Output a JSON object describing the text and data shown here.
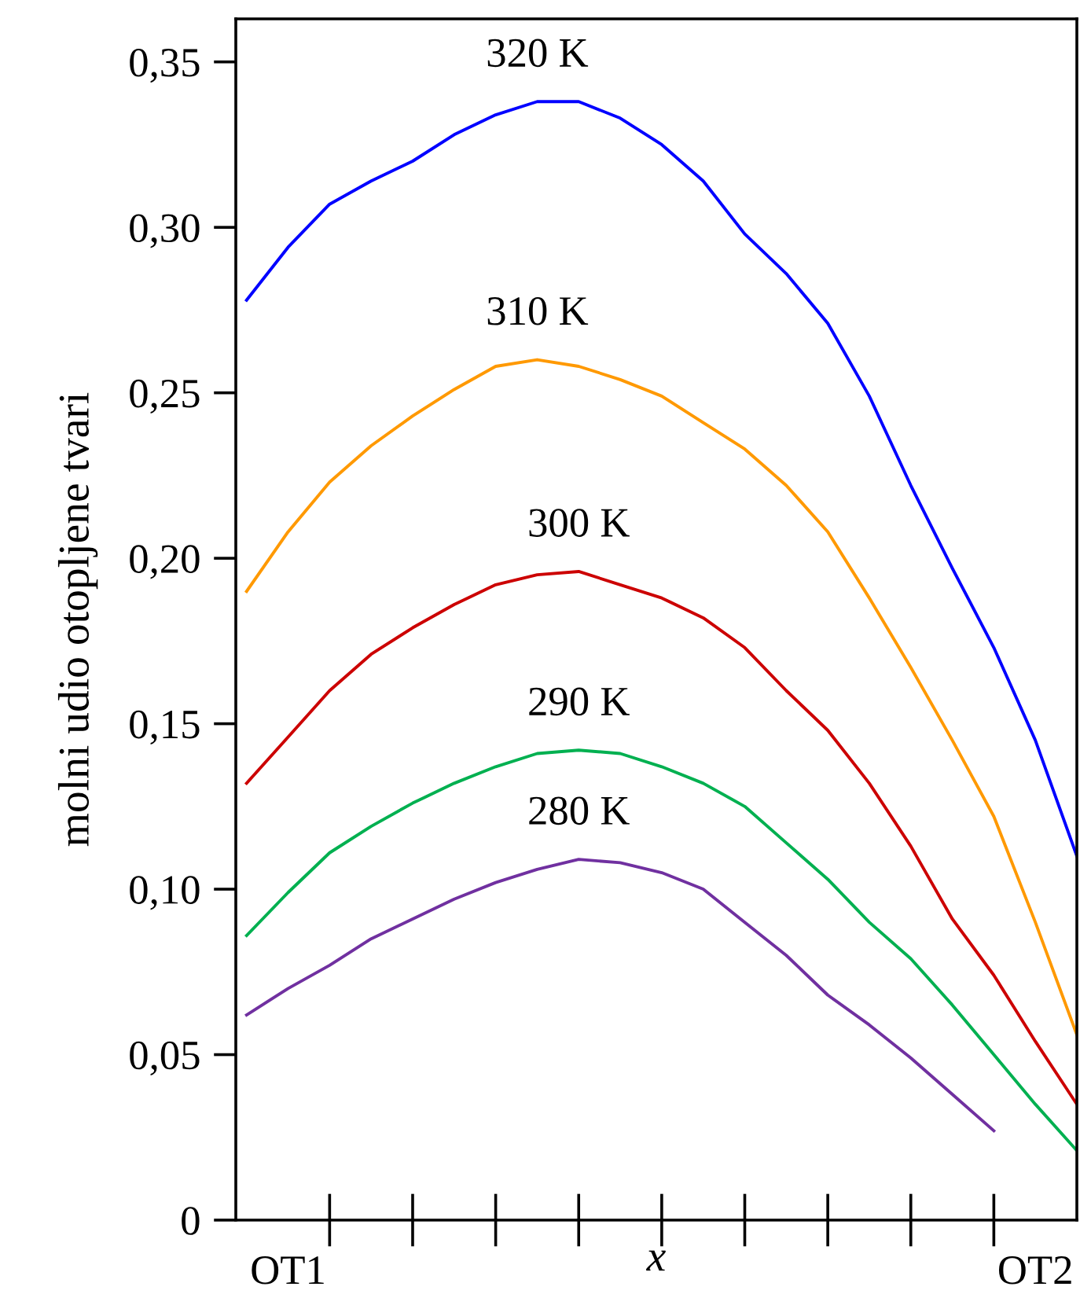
{
  "chart_data": {
    "type": "line",
    "xlabel": "x",
    "ylabel": "molni udio otopljene tvari",
    "categories": [
      null,
      "OT1",
      null,
      null,
      null,
      null,
      null,
      null,
      null,
      null,
      null,
      null,
      null,
      null,
      null,
      null,
      null,
      null,
      null,
      "OT2",
      null
    ],
    "ylim": [
      0,
      0.363
    ],
    "yticks": [
      0,
      {
        "value": 0.05,
        "label": "0,05"
      },
      {
        "value": 0.1,
        "label": "0,10"
      },
      {
        "value": 0.15,
        "label": "0,15"
      },
      {
        "value": 0.2,
        "label": "0,20"
      },
      {
        "value": 0.25,
        "label": "0,25"
      },
      {
        "value": 0.3,
        "label": "0,30"
      },
      {
        "value": 0.35,
        "label": "0,35"
      }
    ],
    "grid": false,
    "legend": false,
    "marker": "none",
    "line_style": "solid",
    "series": [
      {
        "name": "320 K",
        "color": "#0000ff",
        "values": [
          0.278,
          0.294,
          0.307,
          0.314,
          0.32,
          0.328,
          0.334,
          0.338,
          0.338,
          0.333,
          0.325,
          0.314,
          0.298,
          0.286,
          0.271,
          0.249,
          0.222,
          0.197,
          0.173,
          0.145,
          0.11
        ]
      },
      {
        "name": "310 K",
        "color": "#ff9900",
        "values": [
          0.19,
          0.208,
          0.223,
          0.234,
          0.243,
          0.251,
          0.258,
          0.26,
          0.258,
          0.254,
          0.249,
          0.241,
          0.233,
          0.222,
          0.208,
          0.188,
          0.167,
          0.145,
          0.122,
          0.09,
          0.056
        ]
      },
      {
        "name": "300 K",
        "color": "#cc0000",
        "values": [
          0.132,
          0.146,
          0.16,
          0.171,
          0.179,
          0.186,
          0.192,
          0.195,
          0.196,
          0.192,
          0.188,
          0.182,
          0.173,
          0.16,
          0.148,
          0.132,
          0.113,
          0.091,
          0.074,
          0.054,
          0.035
        ]
      },
      {
        "name": "290 K",
        "color": "#00b050",
        "values": [
          0.086,
          0.099,
          0.111,
          0.119,
          0.126,
          0.132,
          0.137,
          0.141,
          0.142,
          0.141,
          0.137,
          0.132,
          0.125,
          0.114,
          0.103,
          0.09,
          0.079,
          0.065,
          0.05,
          0.035,
          0.021
        ]
      },
      {
        "name": "280 K",
        "color": "#7030a0",
        "values": [
          0.062,
          0.07,
          0.077,
          0.085,
          0.091,
          0.097,
          0.102,
          0.106,
          0.109,
          0.108,
          0.105,
          0.1,
          0.09,
          0.08,
          0.068,
          0.059,
          0.049,
          0.038,
          0.027,
          null,
          null
        ]
      }
    ]
  }
}
